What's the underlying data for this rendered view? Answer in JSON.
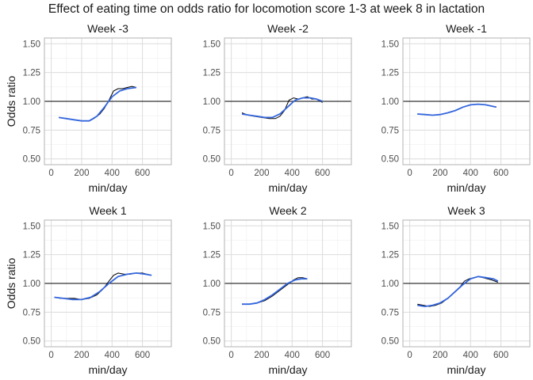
{
  "title": "Effect of eating time on odds ratio for locomotion score 1-3 at week 8 in lactation",
  "colors": {
    "raw": "#000000",
    "smooth": "#3366dd",
    "reference": "#000000",
    "grid": "#dcdcdc",
    "border": "#b3b3b3"
  },
  "chart_data": [
    {
      "type": "line",
      "title": "Week -3",
      "xlabel": "min/day",
      "ylabel": "Odds ratio",
      "xlim": [
        -45,
        790
      ],
      "ylim": [
        0.45,
        1.55
      ],
      "xticks": [
        0,
        200,
        400,
        600
      ],
      "yticks": [
        0.5,
        0.75,
        1.0,
        1.25,
        1.5
      ],
      "ytick_labels": [
        "0.50",
        "0.75",
        "1.00",
        "1.25",
        "1.50"
      ],
      "reference_y": 1.0,
      "series": [
        {
          "role": "raw",
          "x": [
            50,
            100,
            150,
            200,
            250,
            280,
            320,
            350,
            380,
            410,
            440,
            470,
            500,
            530,
            560
          ],
          "y": [
            0.86,
            0.85,
            0.84,
            0.83,
            0.83,
            0.85,
            0.89,
            0.94,
            1.01,
            1.09,
            1.11,
            1.11,
            1.12,
            1.13,
            1.12
          ]
        },
        {
          "role": "smooth",
          "x": [
            50,
            100,
            150,
            200,
            250,
            300,
            350,
            400,
            450,
            500,
            560
          ],
          "y": [
            0.86,
            0.85,
            0.84,
            0.83,
            0.83,
            0.87,
            0.95,
            1.04,
            1.09,
            1.11,
            1.12
          ]
        }
      ]
    },
    {
      "type": "line",
      "title": "Week -2",
      "xlabel": "min/day",
      "ylabel": "",
      "xlim": [
        -45,
        790
      ],
      "ylim": [
        0.45,
        1.55
      ],
      "xticks": [
        0,
        200,
        400,
        600
      ],
      "yticks": [
        0.5,
        0.75,
        1.0,
        1.25,
        1.5
      ],
      "ytick_labels": [
        "0.50",
        "0.75",
        "1.00",
        "1.25",
        "1.50"
      ],
      "reference_y": 1.0,
      "series": [
        {
          "role": "raw",
          "x": [
            70,
            110,
            150,
            200,
            250,
            290,
            320,
            350,
            380,
            410,
            440,
            470,
            500,
            530,
            560,
            600
          ],
          "y": [
            0.9,
            0.88,
            0.87,
            0.86,
            0.85,
            0.85,
            0.87,
            0.92,
            1.01,
            1.03,
            1.02,
            1.03,
            1.04,
            1.02,
            1.02,
            0.99
          ]
        },
        {
          "role": "smooth",
          "x": [
            70,
            120,
            170,
            220,
            270,
            320,
            370,
            420,
            470,
            520,
            560,
            600
          ],
          "y": [
            0.89,
            0.88,
            0.87,
            0.86,
            0.86,
            0.89,
            0.95,
            1.01,
            1.03,
            1.03,
            1.02,
            1.0
          ]
        }
      ]
    },
    {
      "type": "line",
      "title": "Week -1",
      "xlabel": "min/day",
      "ylabel": "",
      "xlim": [
        -45,
        790
      ],
      "ylim": [
        0.45,
        1.55
      ],
      "xticks": [
        0,
        200,
        400,
        600
      ],
      "yticks": [
        0.5,
        0.75,
        1.0,
        1.25,
        1.5
      ],
      "ytick_labels": [
        "0.50",
        "0.75",
        "1.00",
        "1.25",
        "1.50"
      ],
      "reference_y": 1.0,
      "series": [
        {
          "role": "raw",
          "x": [
            50,
            100,
            150,
            200,
            250,
            300,
            350,
            400,
            450,
            500,
            550,
            570
          ],
          "y": [
            0.89,
            0.885,
            0.88,
            0.885,
            0.9,
            0.92,
            0.95,
            0.97,
            0.975,
            0.97,
            0.955,
            0.95
          ]
        },
        {
          "role": "smooth",
          "x": [
            50,
            100,
            150,
            200,
            250,
            300,
            350,
            400,
            450,
            500,
            550,
            570
          ],
          "y": [
            0.89,
            0.885,
            0.88,
            0.885,
            0.9,
            0.92,
            0.95,
            0.97,
            0.975,
            0.97,
            0.955,
            0.95
          ]
        }
      ]
    },
    {
      "type": "line",
      "title": "Week 1",
      "xlabel": "min/day",
      "ylabel": "Odds ratio",
      "xlim": [
        -45,
        790
      ],
      "ylim": [
        0.45,
        1.55
      ],
      "xticks": [
        0,
        200,
        400,
        600
      ],
      "yticks": [
        0.5,
        0.75,
        1.0,
        1.25,
        1.5
      ],
      "ytick_labels": [
        "0.50",
        "0.75",
        "1.00",
        "1.25",
        "1.50"
      ],
      "reference_y": 1.0,
      "series": [
        {
          "role": "raw",
          "x": [
            20,
            60,
            100,
            150,
            200,
            250,
            300,
            340,
            380,
            410,
            440,
            480,
            520,
            560,
            600,
            660
          ],
          "y": [
            0.88,
            0.87,
            0.87,
            0.87,
            0.86,
            0.87,
            0.9,
            0.95,
            1.02,
            1.07,
            1.09,
            1.08,
            1.08,
            1.09,
            1.09,
            1.07
          ]
        },
        {
          "role": "smooth",
          "x": [
            20,
            80,
            140,
            200,
            260,
            320,
            380,
            440,
            500,
            560,
            620,
            660
          ],
          "y": [
            0.88,
            0.87,
            0.86,
            0.86,
            0.88,
            0.93,
            1.0,
            1.06,
            1.08,
            1.09,
            1.08,
            1.07
          ]
        }
      ]
    },
    {
      "type": "line",
      "title": "Week 2",
      "xlabel": "min/day",
      "ylabel": "",
      "xlim": [
        -45,
        790
      ],
      "ylim": [
        0.45,
        1.55
      ],
      "xticks": [
        0,
        200,
        400,
        600
      ],
      "yticks": [
        0.5,
        0.75,
        1.0,
        1.25,
        1.5
      ],
      "ytick_labels": [
        "0.50",
        "0.75",
        "1.00",
        "1.25",
        "1.50"
      ],
      "reference_y": 1.0,
      "series": [
        {
          "role": "raw",
          "x": [
            70,
            120,
            170,
            220,
            270,
            320,
            370,
            410,
            440,
            470,
            500
          ],
          "y": [
            0.82,
            0.82,
            0.83,
            0.85,
            0.89,
            0.94,
            0.99,
            1.03,
            1.05,
            1.05,
            1.04
          ]
        },
        {
          "role": "smooth",
          "x": [
            70,
            120,
            170,
            220,
            270,
            320,
            370,
            420,
            460,
            500
          ],
          "y": [
            0.82,
            0.82,
            0.83,
            0.86,
            0.9,
            0.95,
            1.0,
            1.03,
            1.04,
            1.04
          ]
        }
      ]
    },
    {
      "type": "line",
      "title": "Week 3",
      "xlabel": "min/day",
      "ylabel": "",
      "xlim": [
        -45,
        790
      ],
      "ylim": [
        0.45,
        1.55
      ],
      "xticks": [
        0,
        200,
        400,
        600
      ],
      "yticks": [
        0.5,
        0.75,
        1.0,
        1.25,
        1.5
      ],
      "ytick_labels": [
        "0.50",
        "0.75",
        "1.00",
        "1.25",
        "1.50"
      ],
      "reference_y": 1.0,
      "series": [
        {
          "role": "raw",
          "x": [
            50,
            90,
            130,
            170,
            210,
            250,
            290,
            330,
            360,
            390,
            420,
            450,
            480,
            510,
            540,
            580
          ],
          "y": [
            0.82,
            0.81,
            0.8,
            0.81,
            0.83,
            0.87,
            0.92,
            0.97,
            1.02,
            1.04,
            1.05,
            1.06,
            1.05,
            1.04,
            1.03,
            1.01
          ]
        },
        {
          "role": "smooth",
          "x": [
            50,
            100,
            150,
            200,
            250,
            300,
            350,
            400,
            450,
            500,
            550,
            580
          ],
          "y": [
            0.81,
            0.8,
            0.81,
            0.83,
            0.87,
            0.93,
            0.99,
            1.04,
            1.06,
            1.05,
            1.04,
            1.02
          ]
        }
      ]
    }
  ]
}
